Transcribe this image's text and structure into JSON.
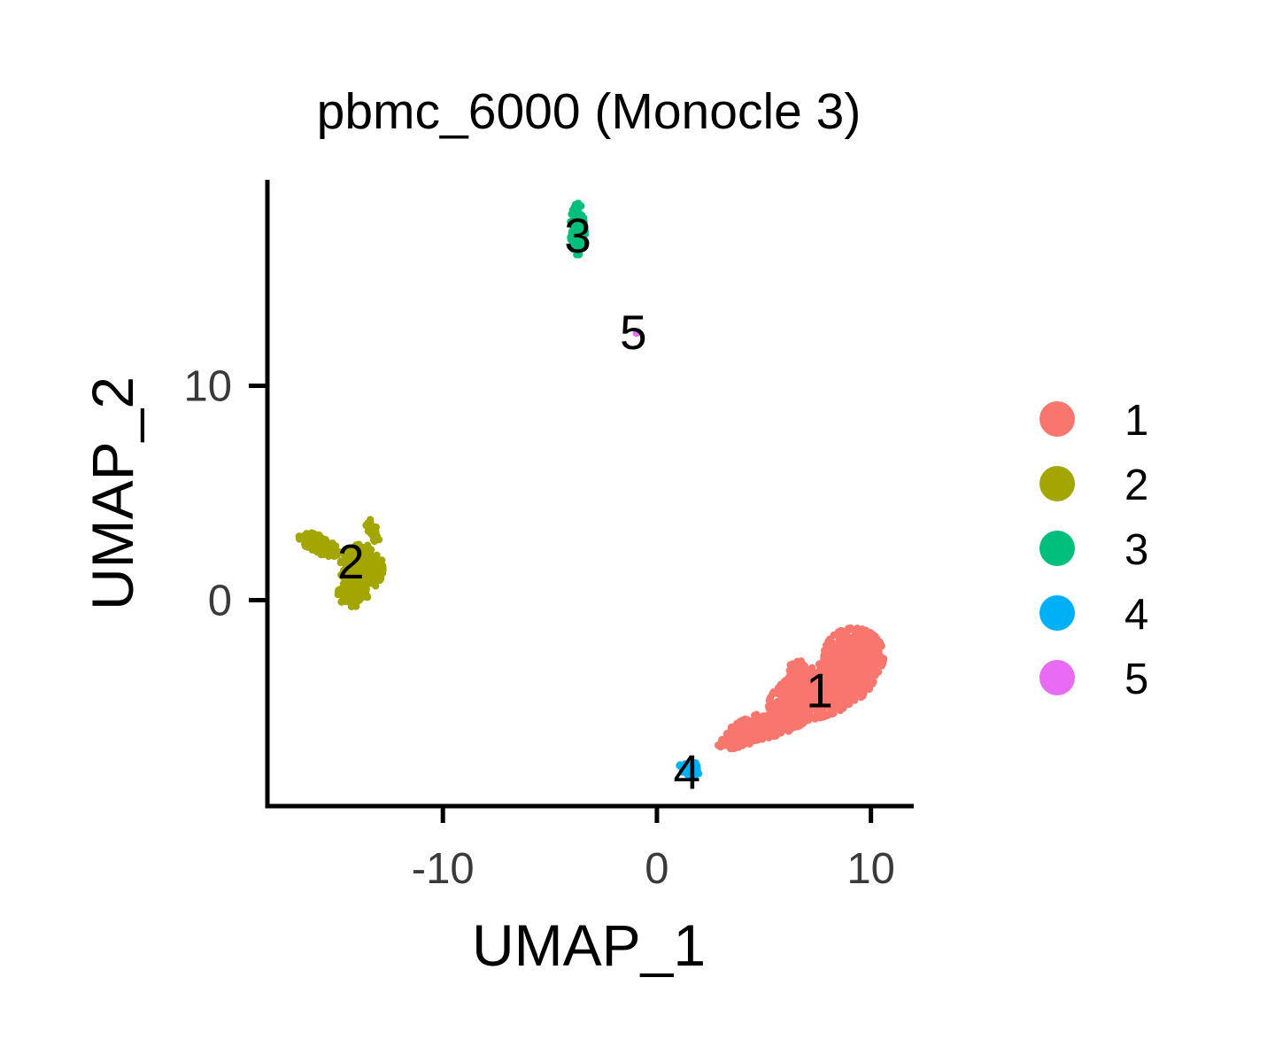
{
  "chart_data": {
    "type": "scatter",
    "title": "pbmc_6000 (Monocle 3)",
    "xlabel": "UMAP_1",
    "ylabel": "UMAP_2",
    "xlim": [
      -18.2,
      12.0
    ],
    "ylim": [
      -9.6,
      19.6
    ],
    "xticks": [
      -10,
      0,
      10
    ],
    "yticks": [
      0,
      10
    ],
    "grid": false,
    "legend_position": "right",
    "series": [
      {
        "name": "1",
        "color": "#F8766D",
        "label_at": [
          7.6,
          -4.2
        ],
        "clusters": [
          {
            "cx": 7.7,
            "cy": -4.2,
            "rx": 2.6,
            "ry": 1.2,
            "angle": 20,
            "n": 1100
          },
          {
            "cx": 9.2,
            "cy": -2.6,
            "rx": 1.4,
            "ry": 1.3,
            "angle": 0,
            "n": 600
          },
          {
            "cx": 5.2,
            "cy": -5.8,
            "rx": 2.0,
            "ry": 0.6,
            "angle": 15,
            "n": 500
          },
          {
            "cx": 3.7,
            "cy": -6.6,
            "rx": 0.9,
            "ry": 0.3,
            "angle": 10,
            "n": 150
          },
          {
            "cx": 6.6,
            "cy": -3.5,
            "rx": 0.5,
            "ry": 0.7,
            "angle": 0,
            "n": 120
          }
        ]
      },
      {
        "name": "2",
        "color": "#A3A500",
        "label_at": [
          -14.3,
          1.8
        ],
        "clusters": [
          {
            "cx": -13.8,
            "cy": 1.5,
            "rx": 1.0,
            "ry": 1.1,
            "angle": 0,
            "n": 400
          },
          {
            "cx": -15.8,
            "cy": 2.6,
            "rx": 1.0,
            "ry": 0.4,
            "angle": -25,
            "n": 200
          },
          {
            "cx": -14.2,
            "cy": 0.3,
            "rx": 0.7,
            "ry": 0.6,
            "angle": 0,
            "n": 150
          },
          {
            "cx": -13.3,
            "cy": 3.2,
            "rx": 0.25,
            "ry": 0.6,
            "angle": 20,
            "n": 60
          }
        ]
      },
      {
        "name": "3",
        "color": "#00BF7D",
        "label_at": [
          -3.7,
          17.0
        ],
        "clusters": [
          {
            "cx": -3.7,
            "cy": 17.3,
            "rx": 0.35,
            "ry": 1.2,
            "angle": 0,
            "n": 160
          }
        ]
      },
      {
        "name": "4",
        "color": "#00B0F6",
        "label_at": [
          1.4,
          -8.0
        ],
        "clusters": [
          {
            "cx": 1.5,
            "cy": -7.9,
            "rx": 0.5,
            "ry": 0.4,
            "angle": 0,
            "n": 60
          }
        ]
      },
      {
        "name": "5",
        "color": "#E76BF3",
        "label_at": [
          -1.1,
          12.5
        ],
        "clusters": [
          {
            "cx": -0.9,
            "cy": 12.5,
            "rx": 0.08,
            "ry": 0.08,
            "angle": 0,
            "n": 3
          }
        ]
      }
    ]
  }
}
